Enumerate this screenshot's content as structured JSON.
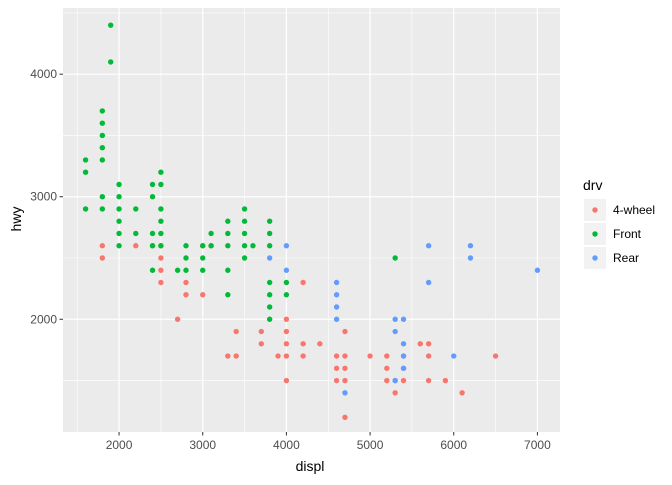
{
  "chart_data": {
    "type": "scatter",
    "title": "",
    "xlabel": "displ",
    "ylabel": "hwy",
    "xlim": [
      1330,
      7270
    ],
    "ylim": [
      1080,
      4540
    ],
    "x_ticks": [
      2000,
      3000,
      4000,
      5000,
      6000,
      7000
    ],
    "y_ticks": [
      2000,
      3000,
      4000
    ],
    "grid": true,
    "legend": {
      "title": "drv",
      "position": "right",
      "entries": [
        {
          "label": "4-wheel",
          "color": "#F8766D"
        },
        {
          "label": "Front",
          "color": "#00BA38"
        },
        {
          "label": "Rear",
          "color": "#619CFF"
        }
      ]
    },
    "series": [
      {
        "name": "4-wheel",
        "color": "#F8766D",
        "points": [
          [
            1800,
            2600
          ],
          [
            1800,
            2500
          ],
          [
            2200,
            2600
          ],
          [
            2400,
            2600
          ],
          [
            2500,
            2500
          ],
          [
            2500,
            2400
          ],
          [
            2500,
            2300
          ],
          [
            2500,
            2600
          ],
          [
            2700,
            2000
          ],
          [
            2800,
            2300
          ],
          [
            2800,
            2200
          ],
          [
            3000,
            2200
          ],
          [
            3000,
            2600
          ],
          [
            3100,
            2600
          ],
          [
            3300,
            1700
          ],
          [
            3400,
            1700
          ],
          [
            3400,
            1900
          ],
          [
            3700,
            1800
          ],
          [
            3700,
            1900
          ],
          [
            3900,
            1700
          ],
          [
            4000,
            1500
          ],
          [
            4000,
            1700
          ],
          [
            4000,
            1800
          ],
          [
            4000,
            1900
          ],
          [
            4000,
            2000
          ],
          [
            4200,
            1800
          ],
          [
            4200,
            1700
          ],
          [
            4200,
            2300
          ],
          [
            4400,
            1800
          ],
          [
            4600,
            1700
          ],
          [
            4600,
            1600
          ],
          [
            4600,
            1500
          ],
          [
            4700,
            1200
          ],
          [
            4700,
            1500
          ],
          [
            4700,
            1600
          ],
          [
            4700,
            1700
          ],
          [
            4700,
            1900
          ],
          [
            5000,
            1700
          ],
          [
            5200,
            1500
          ],
          [
            5200,
            1700
          ],
          [
            5200,
            1600
          ],
          [
            5300,
            1400
          ],
          [
            5300,
            1500
          ],
          [
            5400,
            1700
          ],
          [
            5400,
            1600
          ],
          [
            5400,
            1500
          ],
          [
            5600,
            1800
          ],
          [
            5700,
            1800
          ],
          [
            5700,
            1700
          ],
          [
            5700,
            1500
          ],
          [
            5900,
            1500
          ],
          [
            6100,
            1400
          ],
          [
            6500,
            1700
          ]
        ]
      },
      {
        "name": "Front",
        "color": "#00BA38",
        "points": [
          [
            1600,
            3300
          ],
          [
            1600,
            3200
          ],
          [
            1600,
            2900
          ],
          [
            1800,
            3700
          ],
          [
            1800,
            3600
          ],
          [
            1800,
            3500
          ],
          [
            1800,
            3400
          ],
          [
            1800,
            3300
          ],
          [
            1800,
            3000
          ],
          [
            1800,
            2900
          ],
          [
            1900,
            4400
          ],
          [
            1900,
            4100
          ],
          [
            2000,
            3100
          ],
          [
            2000,
            3000
          ],
          [
            2000,
            2900
          ],
          [
            2000,
            2800
          ],
          [
            2000,
            2700
          ],
          [
            2000,
            2600
          ],
          [
            2200,
            2900
          ],
          [
            2200,
            2700
          ],
          [
            2400,
            3100
          ],
          [
            2400,
            3000
          ],
          [
            2400,
            2700
          ],
          [
            2400,
            2600
          ],
          [
            2400,
            2400
          ],
          [
            2500,
            3200
          ],
          [
            2500,
            3100
          ],
          [
            2500,
            2900
          ],
          [
            2500,
            2800
          ],
          [
            2500,
            2700
          ],
          [
            2500,
            2600
          ],
          [
            2700,
            2400
          ],
          [
            2800,
            2600
          ],
          [
            2800,
            2500
          ],
          [
            2800,
            2400
          ],
          [
            3000,
            2600
          ],
          [
            3000,
            2500
          ],
          [
            3000,
            2400
          ],
          [
            3100,
            2700
          ],
          [
            3100,
            2600
          ],
          [
            3300,
            2800
          ],
          [
            3300,
            2700
          ],
          [
            3300,
            2600
          ],
          [
            3300,
            2400
          ],
          [
            3300,
            2200
          ],
          [
            3500,
            2900
          ],
          [
            3500,
            2800
          ],
          [
            3500,
            2700
          ],
          [
            3500,
            2600
          ],
          [
            3500,
            2500
          ],
          [
            3600,
            2600
          ],
          [
            3800,
            2800
          ],
          [
            3800,
            2700
          ],
          [
            3800,
            2600
          ],
          [
            3800,
            2300
          ],
          [
            3800,
            2200
          ],
          [
            3800,
            2100
          ],
          [
            3800,
            2000
          ],
          [
            4000,
            2300
          ],
          [
            4000,
            2200
          ],
          [
            5300,
            2500
          ]
        ]
      },
      {
        "name": "Rear",
        "color": "#619CFF",
        "points": [
          [
            3800,
            2500
          ],
          [
            4000,
            2600
          ],
          [
            4000,
            2400
          ],
          [
            4600,
            2300
          ],
          [
            4600,
            2200
          ],
          [
            4600,
            2100
          ],
          [
            4600,
            2000
          ],
          [
            4700,
            1400
          ],
          [
            5300,
            2000
          ],
          [
            5300,
            1900
          ],
          [
            5300,
            1500
          ],
          [
            5400,
            2000
          ],
          [
            5400,
            1800
          ],
          [
            5400,
            1700
          ],
          [
            5400,
            1600
          ],
          [
            5700,
            2600
          ],
          [
            5700,
            2300
          ],
          [
            6000,
            1700
          ],
          [
            6200,
            2600
          ],
          [
            6200,
            2500
          ],
          [
            7000,
            2400
          ]
        ]
      }
    ]
  }
}
